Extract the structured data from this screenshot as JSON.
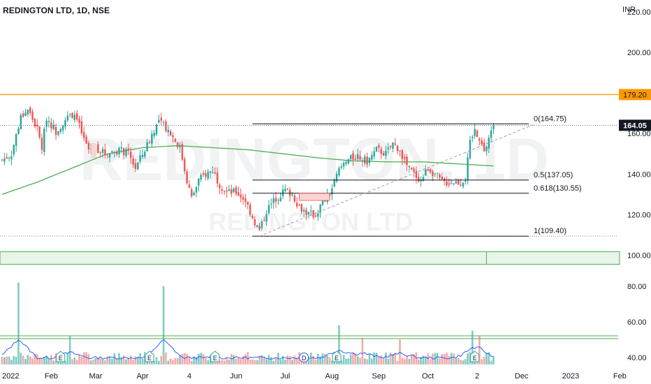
{
  "header": {
    "title": "REDINGTON LTD, 1D, NSE",
    "currency": "INR"
  },
  "watermark": {
    "big": "REDINGTON, 1D",
    "small": "REDINGTON LTD"
  },
  "price_axis": {
    "ticks": [
      {
        "value": 220,
        "label": "220.00"
      },
      {
        "value": 200,
        "label": "200.00"
      },
      {
        "value": 160,
        "label": "160.00"
      },
      {
        "value": 140,
        "label": "140.00"
      },
      {
        "value": 120,
        "label": "120.00"
      },
      {
        "value": 100,
        "label": "100.00"
      }
    ],
    "resistance_label": "179.20",
    "last_price_label": "164.05"
  },
  "volume_axis": {
    "ticks": [
      {
        "value": 80,
        "label": "80.00"
      },
      {
        "value": 60,
        "label": "60.00"
      },
      {
        "value": 40,
        "label": "40.00"
      }
    ]
  },
  "time_axis": [
    {
      "label": "2022",
      "idx": 0
    },
    {
      "label": "Feb",
      "idx": 21
    },
    {
      "label": "Mar",
      "idx": 40
    },
    {
      "label": "Apr",
      "idx": 60
    },
    {
      "label": "4",
      "idx": 80
    },
    {
      "label": "Jun",
      "idx": 100
    },
    {
      "label": "Jul",
      "idx": 121
    },
    {
      "label": "Aug",
      "idx": 141
    },
    {
      "label": "Sep",
      "idx": 161
    },
    {
      "label": "Oct",
      "idx": 182
    },
    {
      "label": "2",
      "idx": 203
    },
    {
      "label": "Dec",
      "idx": 222
    },
    {
      "label": "2023",
      "idx": 243
    },
    {
      "label": "Feb",
      "idx": 264
    }
  ],
  "fib_levels": [
    {
      "ratio": "0",
      "value": 164.75,
      "label": "0(164.75)"
    },
    {
      "ratio": "0.5",
      "value": 137.05,
      "label": "0.5(137.05)"
    },
    {
      "ratio": "0.618",
      "value": 130.55,
      "label": "0.618(130.55)"
    },
    {
      "ratio": "1",
      "value": 109.4,
      "label": "1(109.40)"
    }
  ],
  "event_markers": [
    {
      "idx": 25,
      "label": "E"
    },
    {
      "idx": 63,
      "label": "E"
    },
    {
      "idx": 91,
      "label": "E"
    },
    {
      "idx": 129,
      "label": "D"
    },
    {
      "idx": 143,
      "label": "E"
    },
    {
      "idx": 202,
      "label": "E"
    }
  ],
  "colors": {
    "up": "#26a69a",
    "down": "#ef5350",
    "ma": "#4caf50",
    "resistance": "#ff9800",
    "volume_ma": "#2962ff",
    "label_bg": "#131722"
  },
  "chart_data": {
    "type": "candlestick",
    "symbol": "REDINGTON LTD",
    "interval": "1D",
    "exchange": "NSE",
    "currency": "INR",
    "ylim": [
      96,
      222
    ],
    "resistance_level": 179.2,
    "last_price": 164.05,
    "support_zone": [
      96,
      100
    ],
    "close_path": [
      {
        "idx": 0,
        "price": 147.0
      },
      {
        "idx": 4,
        "price": 150.0
      },
      {
        "idx": 8,
        "price": 168.0
      },
      {
        "idx": 11,
        "price": 172.0
      },
      {
        "idx": 15,
        "price": 162.0
      },
      {
        "idx": 17,
        "price": 153.0
      },
      {
        "idx": 19,
        "price": 168.0
      },
      {
        "idx": 23,
        "price": 161.0
      },
      {
        "idx": 27,
        "price": 167.0
      },
      {
        "idx": 31,
        "price": 170.0
      },
      {
        "idx": 35,
        "price": 157.0
      },
      {
        "idx": 37,
        "price": 152.0
      },
      {
        "idx": 40,
        "price": 153.0
      },
      {
        "idx": 44,
        "price": 150.0
      },
      {
        "idx": 50,
        "price": 152.0
      },
      {
        "idx": 54,
        "price": 150.0
      },
      {
        "idx": 57,
        "price": 143.0
      },
      {
        "idx": 61,
        "price": 152.0
      },
      {
        "idx": 65,
        "price": 162.0
      },
      {
        "idx": 67,
        "price": 166.0
      },
      {
        "idx": 70,
        "price": 163.0
      },
      {
        "idx": 72,
        "price": 160.0
      },
      {
        "idx": 76,
        "price": 153.0
      },
      {
        "idx": 79,
        "price": 137.0
      },
      {
        "idx": 81,
        "price": 128.0
      },
      {
        "idx": 84,
        "price": 137.0
      },
      {
        "idx": 87,
        "price": 140.0
      },
      {
        "idx": 90,
        "price": 142.0
      },
      {
        "idx": 93,
        "price": 135.0
      },
      {
        "idx": 96,
        "price": 131.0
      },
      {
        "idx": 100,
        "price": 131.0
      },
      {
        "idx": 104,
        "price": 127.0
      },
      {
        "idx": 108,
        "price": 116.0
      },
      {
        "idx": 110,
        "price": 112.0
      },
      {
        "idx": 113,
        "price": 122.0
      },
      {
        "idx": 117,
        "price": 128.0
      },
      {
        "idx": 121,
        "price": 132.0
      },
      {
        "idx": 124,
        "price": 130.0
      },
      {
        "idx": 127,
        "price": 124.0
      },
      {
        "idx": 131,
        "price": 120.0
      },
      {
        "idx": 134,
        "price": 120.0
      },
      {
        "idx": 137,
        "price": 126.0
      },
      {
        "idx": 140,
        "price": 130.0
      },
      {
        "idx": 144,
        "price": 142.0
      },
      {
        "idx": 148,
        "price": 147.0
      },
      {
        "idx": 152,
        "price": 149.0
      },
      {
        "idx": 156,
        "price": 146.0
      },
      {
        "idx": 160,
        "price": 152.0
      },
      {
        "idx": 164,
        "price": 150.0
      },
      {
        "idx": 167,
        "price": 155.0
      },
      {
        "idx": 170,
        "price": 152.0
      },
      {
        "idx": 173,
        "price": 144.0
      },
      {
        "idx": 176,
        "price": 140.0
      },
      {
        "idx": 179,
        "price": 137.0
      },
      {
        "idx": 182,
        "price": 143.0
      },
      {
        "idx": 185,
        "price": 140.0
      },
      {
        "idx": 188,
        "price": 136.0
      },
      {
        "idx": 192,
        "price": 136.0
      },
      {
        "idx": 196,
        "price": 136.0
      },
      {
        "idx": 198,
        "price": 138.0
      },
      {
        "idx": 200,
        "price": 155.0
      },
      {
        "idx": 202,
        "price": 162.0
      },
      {
        "idx": 204,
        "price": 158.0
      },
      {
        "idx": 206,
        "price": 150.0
      },
      {
        "idx": 208,
        "price": 158.0
      },
      {
        "idx": 210,
        "price": 164.05
      }
    ],
    "ma_path": [
      {
        "idx": 0,
        "price": 130.0
      },
      {
        "idx": 15,
        "price": 136.0
      },
      {
        "idx": 30,
        "price": 143.0
      },
      {
        "idx": 45,
        "price": 150.0
      },
      {
        "idx": 60,
        "price": 153.0
      },
      {
        "idx": 75,
        "price": 154.0
      },
      {
        "idx": 90,
        "price": 153.0
      },
      {
        "idx": 105,
        "price": 152.0
      },
      {
        "idx": 120,
        "price": 150.0
      },
      {
        "idx": 135,
        "price": 148.0
      },
      {
        "idx": 150,
        "price": 146.5
      },
      {
        "idx": 165,
        "price": 146.0
      },
      {
        "idx": 180,
        "price": 146.0
      },
      {
        "idx": 195,
        "price": 145.0
      },
      {
        "idx": 210,
        "price": 144.0
      }
    ],
    "trendline": {
      "from": {
        "idx": 110,
        "price": 109.4
      },
      "to": {
        "idx": 228,
        "price": 164.75
      }
    },
    "volume_ylim": [
      36,
      87
    ],
    "volume_spikes": [
      {
        "idx": 7,
        "value": 82
      },
      {
        "idx": 29,
        "value": 52
      },
      {
        "idx": 69,
        "value": 80
      },
      {
        "idx": 144,
        "value": 58
      },
      {
        "idx": 154,
        "value": 51
      },
      {
        "idx": 170,
        "value": 50
      },
      {
        "idx": 201,
        "value": 55
      },
      {
        "idx": 204,
        "value": 52
      }
    ]
  }
}
